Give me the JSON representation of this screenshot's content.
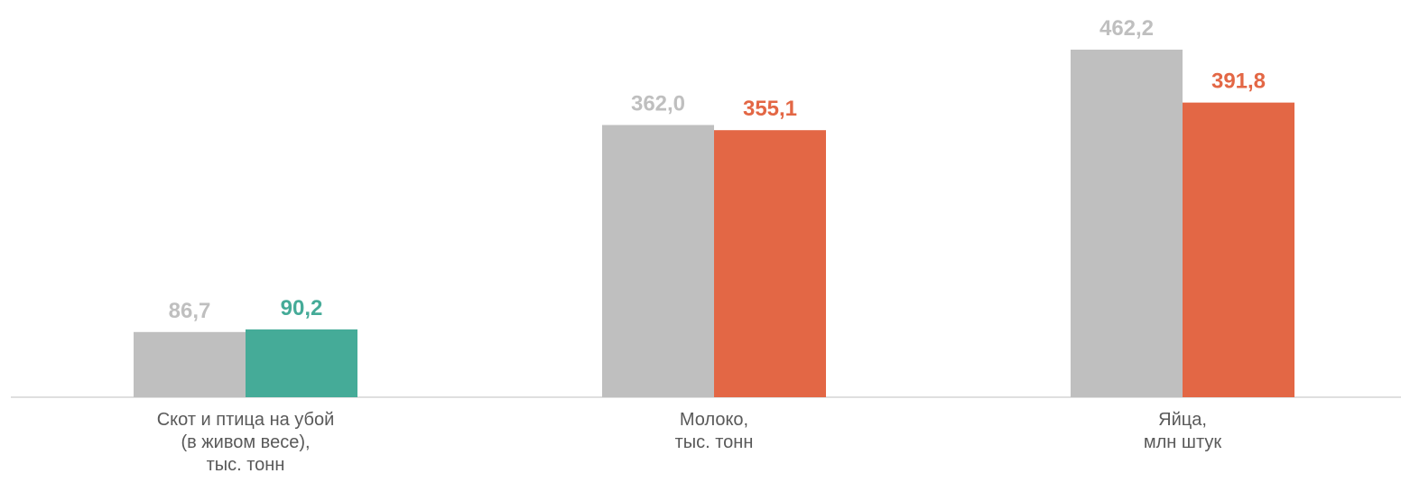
{
  "chart_data": {
    "type": "bar",
    "categories": [
      "Скот и птица на убой\n(в живом весе),\nтыс. тонн",
      "Молоко,\nтыс. тонн",
      "Яйца,\nмлн штук"
    ],
    "series": [
      {
        "color": "#bfbfbf",
        "values": [
          86.7,
          362.0,
          462.2
        ],
        "value_labels": [
          "86,7",
          "362,0",
          "462,2"
        ]
      },
      {
        "colors": [
          "#45ab98",
          "#e36745",
          "#e36745"
        ],
        "values": [
          90.2,
          355.1,
          391.8
        ],
        "value_labels": [
          "90,2",
          "355,1",
          "391,8"
        ]
      }
    ],
    "ylim": [
      0,
      500
    ]
  }
}
